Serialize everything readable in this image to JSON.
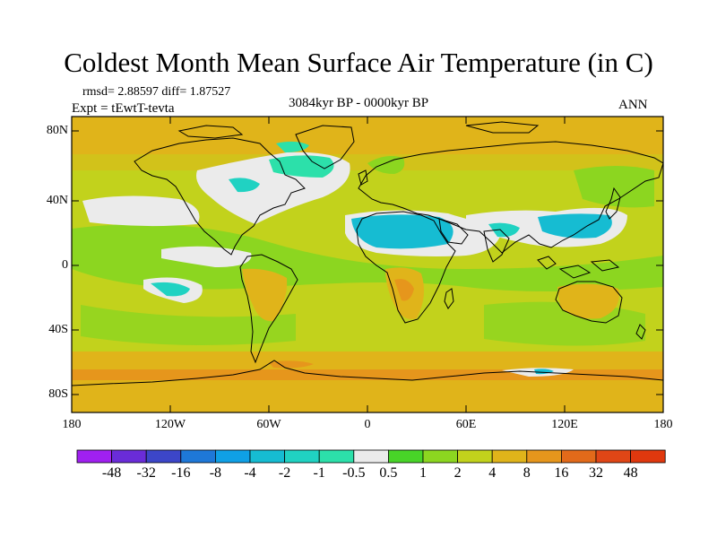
{
  "title": "Coldest Month Mean Surface Air Temperature (in C)",
  "stats": "rmsd= 2.88597  diff= 1.87527",
  "expt": "Expt = tEwtT-tevta",
  "period": "3084kyr BP - 0000kyr BP",
  "season": "ANN",
  "lat_labels": [
    "80N",
    "40N",
    "0",
    "40S",
    "80S"
  ],
  "lon_labels": [
    "180",
    "120W",
    "60W",
    "0",
    "60E",
    "120E",
    "180"
  ],
  "colorbar": {
    "labels": [
      "-48",
      "-32",
      "-16",
      "-8",
      "-4",
      "-2",
      "-1",
      "-0.5",
      "0.5",
      "1",
      "2",
      "4",
      "8",
      "16",
      "32",
      "48"
    ],
    "colors": [
      "#a020f0",
      "#6a2cd8",
      "#3c46c8",
      "#1e78d8",
      "#0fa0e6",
      "#16bcd2",
      "#20d2c2",
      "#2ce0aa",
      "#ebebeb",
      "#48d428",
      "#8cd620",
      "#c2d21c",
      "#e0b41a",
      "#e6961c",
      "#e26a1a",
      "#e04616",
      "#e0380e"
    ]
  }
}
